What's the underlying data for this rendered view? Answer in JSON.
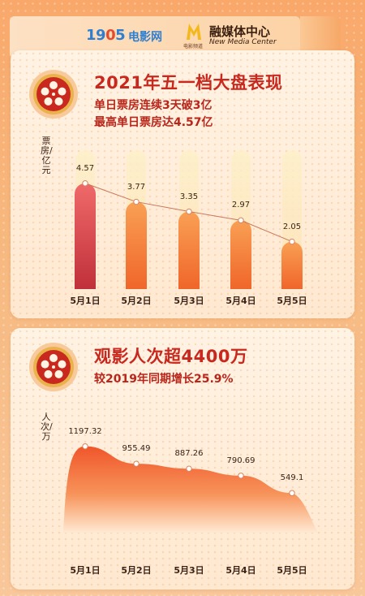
{
  "header": {
    "logo_1905_num": "19",
    "logo_1905_c": "0",
    "logo_1905_end": "5",
    "logo_1905_cn": "电影网",
    "mark_sub": "电影频道",
    "brand_cn": "融媒体中心",
    "brand_en": "New Media Center"
  },
  "chart1": {
    "title": "2021年五一档大盘表现",
    "subtitle1": "单日票房连续3天破3亿",
    "subtitle2": "最高单日票房达4.57亿",
    "ylabel": "票房/亿元"
  },
  "chart2": {
    "title": "观影人次超4400万",
    "subtitle": "较2019年同期增长25.9%",
    "ylabel": "人次/万"
  },
  "chart_data": [
    {
      "type": "bar",
      "title": "2021年五一档大盘表现",
      "ylabel": "票房/亿元",
      "categories": [
        "5月1日",
        "5月2日",
        "5月3日",
        "5月4日",
        "5月5日"
      ],
      "values": [
        4.57,
        3.77,
        3.35,
        2.97,
        2.05
      ],
      "value_labels": [
        "4.57",
        "3.77",
        "3.35",
        "2.97",
        "2.05"
      ],
      "ylim": [
        0,
        6
      ],
      "overlay_line": true,
      "bar_color_first": "#c8343a",
      "bar_color": "#f47e2e"
    },
    {
      "type": "area",
      "title": "观影人次超4400万",
      "ylabel": "人次/万",
      "categories": [
        "5月1日",
        "5月2日",
        "5月3日",
        "5月4日",
        "5月5日"
      ],
      "values": [
        1197.32,
        955.49,
        887.26,
        790.69,
        549.1
      ],
      "value_labels": [
        "1197.32",
        "955.49",
        "887.26",
        "790.69",
        "549.1"
      ],
      "area_color_top": "#f05a2a",
      "area_color_bottom": "#ffe3c6"
    }
  ]
}
